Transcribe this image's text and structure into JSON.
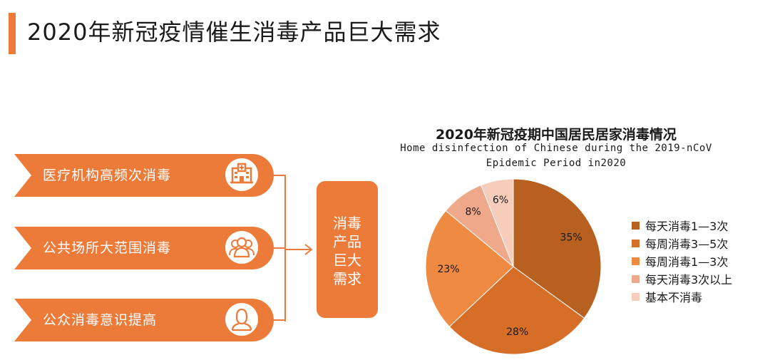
{
  "page": {
    "title": "2020年新冠疫情催生消毒产品巨大需求"
  },
  "drivers": [
    {
      "label": "医疗机构高频次消毒",
      "icon": "hospital-icon"
    },
    {
      "label": "公共场所大范围消毒",
      "icon": "crowd-icon"
    },
    {
      "label": "公众消毒意识提高",
      "icon": "person-icon"
    }
  ],
  "result": {
    "lines": [
      "消毒",
      "产品",
      "巨大",
      "需求"
    ]
  },
  "colors": {
    "accent": "#ec7b3a"
  },
  "chart_data": {
    "type": "pie",
    "title": "2020年新冠疫期中国居民居家消毒情况",
    "subtitle_lines": [
      "Home disinfection of Chinese during the 2019-nCoV",
      "Epidemic Period in2020"
    ],
    "slices": [
      {
        "label": "每天消毒1—3次",
        "value": 35,
        "display": "35%",
        "color": "#b8601f"
      },
      {
        "label": "每周消毒3—5次",
        "value": 28,
        "display": "28%",
        "color": "#d66e28"
      },
      {
        "label": "每周消毒1—3次",
        "value": 23,
        "display": "23%",
        "color": "#ee8a42"
      },
      {
        "label": "每天消毒3次以上",
        "value": 8,
        "display": "8%",
        "color": "#f0a88a"
      },
      {
        "label": "基本不消毒",
        "value": 6,
        "display": "6%",
        "color": "#f6cdbb"
      }
    ],
    "start_angle": "12 o'clock",
    "direction": "clockwise",
    "legend_position": "right"
  }
}
